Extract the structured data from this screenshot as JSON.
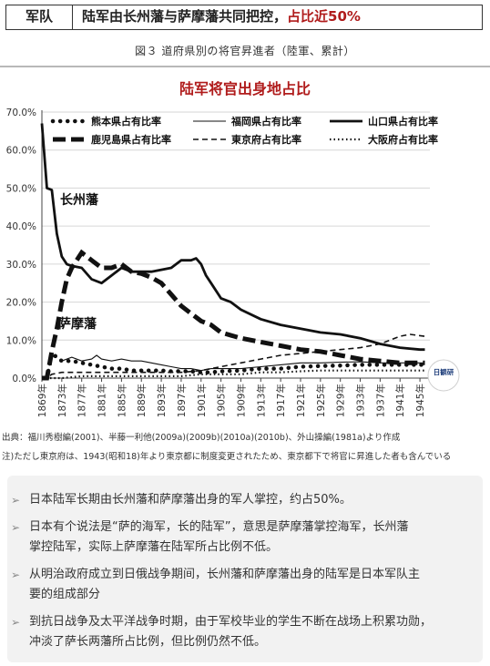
{
  "header": {
    "tag": "军队",
    "title_main": "陆军由长州藩与萨摩藩共同把控，",
    "title_accent": "占比近50%"
  },
  "figure_caption": "図３ 道府県別の将官昇進者（陸軍、累計）",
  "chart_title": "陆军将官出身地占比",
  "annotations": {
    "choshu": "长州藩",
    "satsuma": "萨摩藩",
    "watermark": "日観研"
  },
  "colors": {
    "accent": "#b01c1c",
    "series": "#111111",
    "title": "#b01c1c"
  },
  "chart_data": {
    "type": "line",
    "title": "陆军将官出身地占比",
    "xlabel": "",
    "ylabel": "",
    "xlim": [
      1869,
      1947
    ],
    "ylim": [
      0,
      70
    ],
    "y_ticks": [
      "0.0%",
      "10.0%",
      "20.0%",
      "30.0%",
      "40.0%",
      "50.0%",
      "60.0%",
      "70.0%"
    ],
    "x_ticks": [
      "1869年",
      "1873年",
      "1877年",
      "1881年",
      "1885年",
      "1889年",
      "1893年",
      "1897年",
      "1901年",
      "1905年",
      "1909年",
      "1913年",
      "1917年",
      "1921年",
      "1925年",
      "1929年",
      "1933年",
      "1937年",
      "1941年",
      "1945年"
    ],
    "legend_position": "top",
    "series": [
      {
        "name": "熊本県占有比率",
        "style": "dotted-heavy",
        "points": [
          [
            1870,
            0
          ],
          [
            1871,
            6.5
          ],
          [
            1873,
            4.5
          ],
          [
            1875,
            4.5
          ],
          [
            1877,
            4
          ],
          [
            1879,
            3.5
          ],
          [
            1881,
            3
          ],
          [
            1883,
            2.5
          ],
          [
            1885,
            2.5
          ],
          [
            1887,
            2
          ],
          [
            1889,
            2
          ],
          [
            1891,
            2
          ],
          [
            1893,
            2
          ],
          [
            1895,
            1.8
          ],
          [
            1897,
            1.8
          ],
          [
            1899,
            1.8
          ],
          [
            1901,
            1.5
          ],
          [
            1903,
            1.5
          ],
          [
            1905,
            1.8
          ],
          [
            1909,
            2
          ],
          [
            1913,
            2.5
          ],
          [
            1917,
            2.5
          ],
          [
            1921,
            3
          ],
          [
            1925,
            3.2
          ],
          [
            1929,
            3.3
          ],
          [
            1933,
            3.5
          ],
          [
            1937,
            3.5
          ],
          [
            1941,
            3.5
          ],
          [
            1946,
            3.5
          ]
        ]
      },
      {
        "name": "福岡県占有比率",
        "style": "thin-solid",
        "points": [
          [
            1873,
            4.5
          ],
          [
            1875,
            5.5
          ],
          [
            1877,
            4.5
          ],
          [
            1879,
            5
          ],
          [
            1880,
            6
          ],
          [
            1881,
            5
          ],
          [
            1883,
            4.5
          ],
          [
            1885,
            5
          ],
          [
            1887,
            4.5
          ],
          [
            1889,
            4.5
          ],
          [
            1891,
            4
          ],
          [
            1893,
            3.5
          ],
          [
            1895,
            3
          ],
          [
            1897,
            2.5
          ],
          [
            1899,
            2.5
          ],
          [
            1901,
            2
          ],
          [
            1903,
            2.5
          ],
          [
            1905,
            2.5
          ],
          [
            1909,
            2.5
          ],
          [
            1913,
            3
          ],
          [
            1917,
            3.5
          ],
          [
            1921,
            4
          ],
          [
            1925,
            4
          ],
          [
            1929,
            4.2
          ],
          [
            1933,
            4.3
          ],
          [
            1937,
            4
          ],
          [
            1941,
            4
          ],
          [
            1946,
            4
          ]
        ]
      },
      {
        "name": "山口県占有比率",
        "style": "thick-solid",
        "points": [
          [
            1869,
            67
          ],
          [
            1870,
            50
          ],
          [
            1871,
            49.5
          ],
          [
            1872,
            38
          ],
          [
            1873,
            32
          ],
          [
            1874,
            30
          ],
          [
            1875,
            29.5
          ],
          [
            1877,
            29
          ],
          [
            1879,
            26
          ],
          [
            1881,
            25
          ],
          [
            1883,
            27
          ],
          [
            1885,
            29
          ],
          [
            1887,
            28
          ],
          [
            1889,
            28
          ],
          [
            1891,
            28
          ],
          [
            1893,
            28.5
          ],
          [
            1895,
            29
          ],
          [
            1897,
            31
          ],
          [
            1899,
            31
          ],
          [
            1900,
            31.5
          ],
          [
            1901,
            30
          ],
          [
            1902,
            27
          ],
          [
            1903,
            25
          ],
          [
            1905,
            21
          ],
          [
            1907,
            20
          ],
          [
            1909,
            18
          ],
          [
            1913,
            15.5
          ],
          [
            1917,
            14
          ],
          [
            1921,
            13
          ],
          [
            1925,
            12
          ],
          [
            1929,
            11.5
          ],
          [
            1933,
            10.5
          ],
          [
            1937,
            9
          ],
          [
            1941,
            8
          ],
          [
            1945,
            7.5
          ],
          [
            1946,
            7.5
          ]
        ]
      },
      {
        "name": "鹿児島県占有比率",
        "style": "thick-dashed",
        "points": [
          [
            1869,
            0
          ],
          [
            1870,
            0
          ],
          [
            1871,
            7
          ],
          [
            1872,
            13
          ],
          [
            1873,
            20
          ],
          [
            1874,
            26
          ],
          [
            1875,
            29
          ],
          [
            1876,
            31
          ],
          [
            1877,
            33
          ],
          [
            1879,
            31
          ],
          [
            1881,
            29
          ],
          [
            1883,
            29
          ],
          [
            1885,
            30
          ],
          [
            1887,
            28
          ],
          [
            1889,
            27.5
          ],
          [
            1891,
            26.5
          ],
          [
            1893,
            25
          ],
          [
            1895,
            22
          ],
          [
            1897,
            19
          ],
          [
            1899,
            17
          ],
          [
            1901,
            15
          ],
          [
            1903,
            14
          ],
          [
            1905,
            12
          ],
          [
            1909,
            10.5
          ],
          [
            1913,
            9.5
          ],
          [
            1917,
            8.5
          ],
          [
            1921,
            7.5
          ],
          [
            1925,
            7
          ],
          [
            1929,
            6
          ],
          [
            1933,
            5
          ],
          [
            1937,
            4.5
          ],
          [
            1941,
            4
          ],
          [
            1946,
            4
          ]
        ]
      },
      {
        "name": "東京府占有比率",
        "style": "thin-dashed",
        "points": [
          [
            1869,
            0
          ],
          [
            1870,
            0
          ],
          [
            1871,
            1
          ],
          [
            1873,
            1.5
          ],
          [
            1877,
            1.5
          ],
          [
            1881,
            1.5
          ],
          [
            1885,
            1.5
          ],
          [
            1889,
            1.5
          ],
          [
            1893,
            1.5
          ],
          [
            1897,
            1.5
          ],
          [
            1901,
            2
          ],
          [
            1905,
            3
          ],
          [
            1909,
            4
          ],
          [
            1913,
            5
          ],
          [
            1917,
            6
          ],
          [
            1921,
            6.5
          ],
          [
            1925,
            7
          ],
          [
            1929,
            7.5
          ],
          [
            1933,
            8
          ],
          [
            1937,
            9
          ],
          [
            1941,
            11
          ],
          [
            1943,
            11.5
          ],
          [
            1946,
            11
          ]
        ]
      },
      {
        "name": "大阪府占有比率",
        "style": "thin-dotted",
        "points": [
          [
            1869,
            0
          ],
          [
            1873,
            0
          ],
          [
            1877,
            0.5
          ],
          [
            1881,
            0.5
          ],
          [
            1885,
            0.5
          ],
          [
            1889,
            0.5
          ],
          [
            1893,
            0.5
          ],
          [
            1897,
            0.5
          ],
          [
            1901,
            1
          ],
          [
            1905,
            1
          ],
          [
            1909,
            1
          ],
          [
            1913,
            1.5
          ],
          [
            1917,
            1.5
          ],
          [
            1921,
            1.8
          ],
          [
            1925,
            2
          ],
          [
            1929,
            2
          ],
          [
            1933,
            2
          ],
          [
            1937,
            2
          ],
          [
            1941,
            2
          ],
          [
            1946,
            2
          ]
        ]
      }
    ]
  },
  "source_text": "出典：福川秀樹編(2001)、半藤一利他(2009a)(2009b)(2010a)(2010b)、外山操編(1981a)より作成",
  "note_text": "注)ただし東京府は、1943(昭和18)年より東京都に制度変更されたため、東京都下で将官に昇進した者も含んでいる",
  "bullets": [
    {
      "lines": [
        "日本陆军长期由长州藩和萨摩藩出身的军人掌控，约占50%。"
      ]
    },
    {
      "lines": [
        "日本有个说法是“萨的海军，长的陆军”，意思是萨摩藩掌控海军，长州藩",
        "掌控陆军，实际上萨摩藩在陆军所占比例不低。"
      ]
    },
    {
      "lines": [
        "从明治政府成立到日俄战争期间，长州藩和萨摩藩出身的陆军是日本军队主",
        "要的组成部分"
      ]
    },
    {
      "lines": [
        "到抗日战争及太平洋战争时期，由于军校毕业的学生不断在战场上积累功勋，",
        "冲淡了萨长两藩所占比例，但比例仍然不低。"
      ]
    }
  ],
  "bullet_marker": "➢"
}
